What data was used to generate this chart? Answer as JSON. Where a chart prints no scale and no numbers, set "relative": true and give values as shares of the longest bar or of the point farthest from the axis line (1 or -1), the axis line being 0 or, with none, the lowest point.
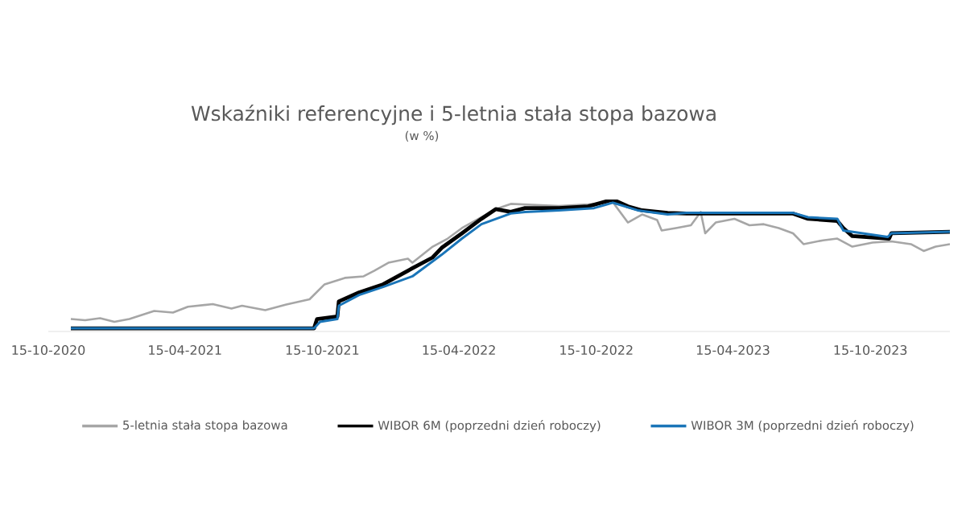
{
  "chart_data": {
    "type": "line",
    "title": "Wskaźniki referencyjne i 5-letnia stała stopa bazowa",
    "subtitle": "(w %)",
    "relative": true,
    "legend": "bottom",
    "xlim": [
      "2020-10-15",
      "2024-01-29"
    ],
    "xticks": [
      {
        "value": "2020-10-15",
        "label": "15-10-2020"
      },
      {
        "value": "2021-04-15",
        "label": "15-04-2021"
      },
      {
        "value": "2021-10-15",
        "label": "15-10-2021"
      },
      {
        "value": "2022-04-15",
        "label": "15-04-2022"
      },
      {
        "value": "2022-10-15",
        "label": "15-10-2022"
      },
      {
        "value": "2023-04-15",
        "label": "15-04-2023"
      },
      {
        "value": "2023-10-15",
        "label": "15-10-2023"
      }
    ],
    "series": [
      {
        "name": "5-letnia stała stopa bazowa",
        "color": "#a6a6a6",
        "x": [
          "2020-11-14",
          "2020-12-03",
          "2020-12-23",
          "2021-01-11",
          "2021-01-31",
          "2021-03-05",
          "2021-03-30",
          "2021-04-19",
          "2021-05-22",
          "2021-06-16",
          "2021-06-30",
          "2021-07-31",
          "2021-08-28",
          "2021-09-28",
          "2021-10-18",
          "2021-11-14",
          "2021-12-09",
          "2021-12-23",
          "2022-01-11",
          "2022-02-06",
          "2022-02-12",
          "2022-03-11",
          "2022-03-31",
          "2022-04-19",
          "2022-05-15",
          "2022-06-03",
          "2022-06-23",
          "2022-08-26",
          "2022-10-04",
          "2022-11-06",
          "2022-11-26",
          "2022-12-15",
          "2023-01-04",
          "2023-01-10",
          "2023-01-29",
          "2023-02-18",
          "2023-03-03",
          "2023-03-09",
          "2023-03-23",
          "2023-04-17",
          "2023-05-07",
          "2023-05-26",
          "2023-06-15",
          "2023-07-04",
          "2023-07-18",
          "2023-08-13",
          "2023-09-01",
          "2023-09-21",
          "2023-10-18",
          "2023-11-12",
          "2023-12-08",
          "2023-12-25",
          "2024-01-10",
          "2024-01-29"
        ],
        "values": [
          0.094,
          0.085,
          0.101,
          0.073,
          0.094,
          0.155,
          0.143,
          0.187,
          0.207,
          0.174,
          0.195,
          0.162,
          0.204,
          0.244,
          0.357,
          0.406,
          0.418,
          0.46,
          0.521,
          0.552,
          0.521,
          0.643,
          0.704,
          0.784,
          0.866,
          0.927,
          0.967,
          0.951,
          0.963,
          0.98,
          0.826,
          0.887,
          0.845,
          0.765,
          0.784,
          0.805,
          0.906,
          0.744,
          0.826,
          0.854,
          0.805,
          0.813,
          0.784,
          0.744,
          0.662,
          0.691,
          0.704,
          0.643,
          0.674,
          0.683,
          0.662,
          0.61,
          0.643,
          0.662
        ]
      },
      {
        "name": "WIBOR 6M (poprzedni dzień roboczy)",
        "color": "#000000",
        "x": [
          "2020-11-14",
          "2021-10-04",
          "2021-10-08",
          "2021-11-04",
          "2021-11-06",
          "2021-12-03",
          "2022-01-04",
          "2022-02-12",
          "2022-03-11",
          "2022-03-23",
          "2022-04-19",
          "2022-05-15",
          "2022-06-03",
          "2022-06-23",
          "2022-07-12",
          "2022-08-26",
          "2022-10-04",
          "2022-11-06",
          "2022-11-26",
          "2022-12-15",
          "2023-01-18",
          "2023-02-12",
          "2023-07-04",
          "2023-07-24",
          "2023-09-01",
          "2023-09-09",
          "2023-09-21",
          "2023-11-09",
          "2023-11-12",
          "2024-01-29"
        ],
        "values": [
          0.024,
          0.024,
          0.094,
          0.113,
          0.228,
          0.296,
          0.357,
          0.479,
          0.561,
          0.634,
          0.744,
          0.854,
          0.927,
          0.906,
          0.935,
          0.935,
          0.948,
          1,
          0.948,
          0.918,
          0.899,
          0.894,
          0.894,
          0.854,
          0.838,
          0.784,
          0.723,
          0.704,
          0.744,
          0.756
        ]
      },
      {
        "name": "WIBOR 3M (poprzedni dzień roboczy)",
        "color": "#1a75b8",
        "x": [
          "2020-11-14",
          "2021-10-04",
          "2021-10-12",
          "2021-11-04",
          "2021-11-06",
          "2021-12-03",
          "2022-01-04",
          "2022-02-12",
          "2022-03-23",
          "2022-04-19",
          "2022-05-15",
          "2022-06-23",
          "2022-07-12",
          "2022-08-26",
          "2022-10-12",
          "2022-11-06",
          "2022-12-09",
          "2023-01-18",
          "2023-02-12",
          "2023-07-04",
          "2023-07-24",
          "2023-09-01",
          "2023-09-09",
          "2023-11-07",
          "2023-11-12",
          "2024-01-29"
        ],
        "values": [
          0.024,
          0.024,
          0.073,
          0.094,
          0.195,
          0.277,
          0.338,
          0.418,
          0.582,
          0.704,
          0.813,
          0.894,
          0.906,
          0.918,
          0.935,
          0.976,
          0.918,
          0.887,
          0.899,
          0.899,
          0.866,
          0.854,
          0.765,
          0.716,
          0.744,
          0.756
        ]
      }
    ]
  }
}
